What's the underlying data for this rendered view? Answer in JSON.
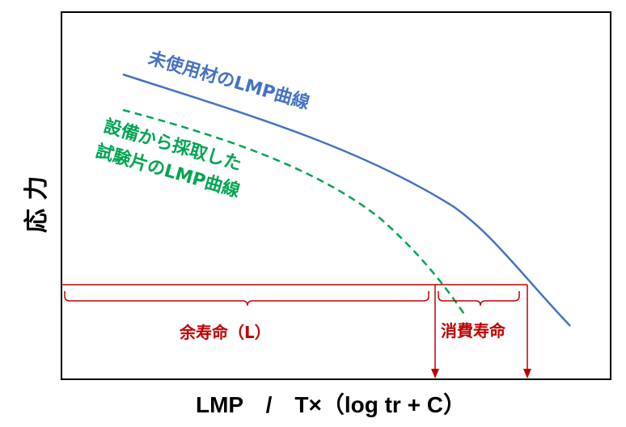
{
  "labels": {
    "y_axis": "応 力",
    "x_axis": "LMP　/　T×（log tr + C）",
    "curve_new": "未使用材のLMP曲線",
    "curve_sample_line1": "設備から採取した",
    "curve_sample_line2": "試験片のLMP曲線",
    "remaining_life": "余寿命（L）",
    "consumed_life": "消費寿命"
  },
  "colors": {
    "curve_new": "#4472c4",
    "curve_sample": "#00a550",
    "life_markers": "#c00000",
    "frame": "#000000"
  }
}
